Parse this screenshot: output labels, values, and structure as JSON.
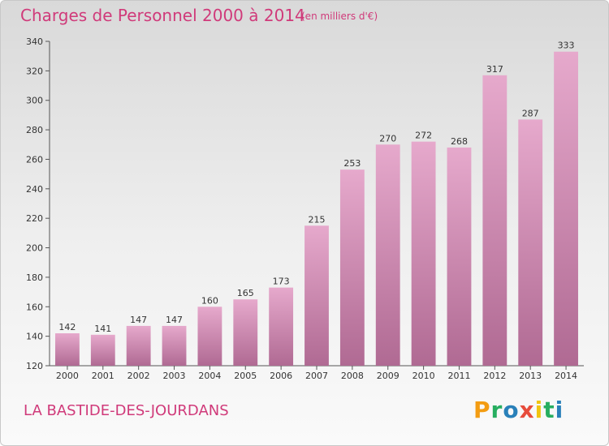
{
  "title": "Charges de Personnel 2000 à 2014",
  "subtitle": "(en milliers d'€)",
  "commune": "LA BASTIDE-DES-JOURDANS",
  "logo": {
    "letters": [
      "P",
      "r",
      "o",
      "x",
      "i",
      "t",
      "i"
    ],
    "colors": [
      "#f39c12",
      "#27ae60",
      "#2980b9",
      "#e74c3c",
      "#f1c40f",
      "#27ae60",
      "#2980b9"
    ]
  },
  "colors": {
    "bar_top": "#e6a9cc",
    "bar_bottom": "#b06a93",
    "text": "#333333",
    "accent": "#d03a7a"
  },
  "chart_data": {
    "type": "bar",
    "categories": [
      "2000",
      "2001",
      "2002",
      "2003",
      "2004",
      "2005",
      "2006",
      "2007",
      "2008",
      "2009",
      "2010",
      "2011",
      "2012",
      "2013",
      "2014"
    ],
    "values": [
      142,
      141,
      147,
      147,
      160,
      165,
      173,
      215,
      253,
      270,
      272,
      268,
      317,
      287,
      333
    ],
    "data_labels": [
      "142",
      "141",
      "147",
      "147",
      "160",
      "165",
      "173",
      "215",
      "253",
      "270",
      "272",
      "268",
      "317",
      "287",
      "333"
    ],
    "ylim": [
      120,
      340
    ],
    "yticks": [
      120,
      140,
      160,
      180,
      200,
      220,
      240,
      260,
      280,
      300,
      320,
      340
    ],
    "grid": false
  }
}
